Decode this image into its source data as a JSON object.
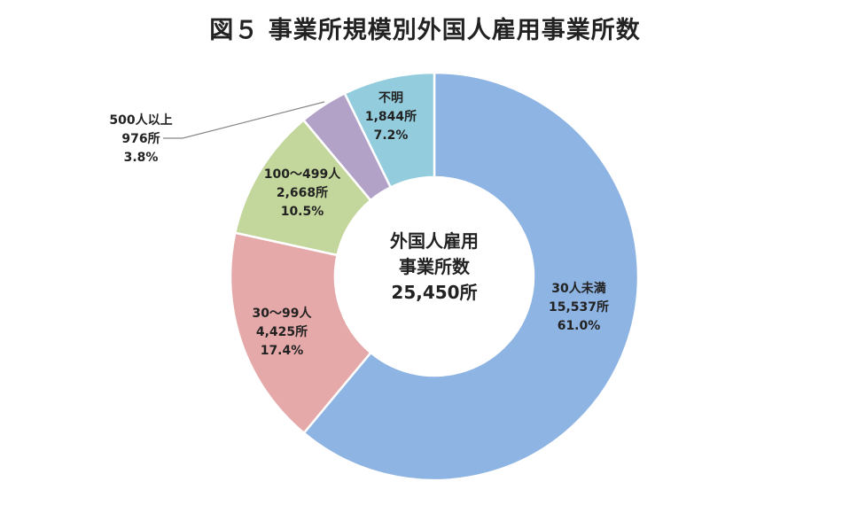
{
  "title": "図５ 事業所規模別外国人雇用事業所数",
  "center": {
    "line1": "外国人雇用",
    "line2": "事業所数",
    "total": "25,450所"
  },
  "chart_data": {
    "type": "pie",
    "donut": true,
    "start": "12 o'clock, clockwise",
    "slices": [
      {
        "name": "30人未満",
        "count": "15,537所",
        "value": 15537,
        "percent": "61.0%",
        "color": "#8eb4e3"
      },
      {
        "name": "30～99人",
        "count": "4,425所",
        "value": 4425,
        "percent": "17.4%",
        "color": "#e6a9a9"
      },
      {
        "name": "100～499人",
        "count": "2,668所",
        "value": 2668,
        "percent": "10.5%",
        "color": "#c3d69b"
      },
      {
        "name": "500人以上",
        "count": "976所",
        "value": 976,
        "percent": "3.8%",
        "color": "#b3a2c7"
      },
      {
        "name": "不明",
        "count": "1,844所",
        "value": 1844,
        "percent": "7.2%",
        "color": "#93cddd"
      }
    ]
  }
}
